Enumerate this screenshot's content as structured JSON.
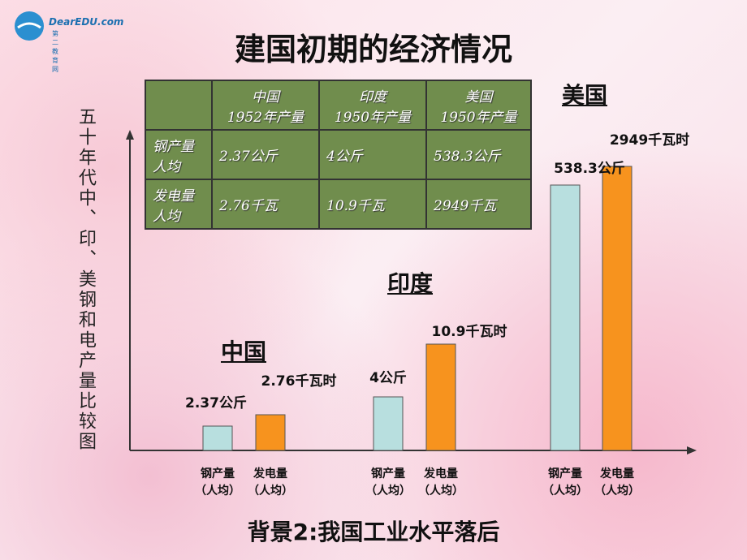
{
  "logo": {
    "brand": "DearEDU.com",
    "sub": "第二教育网"
  },
  "title": "建国初期的经济情况",
  "side_caption": "五十年代中、印、美钢和电产量比较图",
  "table": {
    "header": [
      [
        "中国",
        "1952年产量"
      ],
      [
        "印度",
        "1950年产量"
      ],
      [
        "美国",
        "1950年产量"
      ]
    ],
    "rows": [
      [
        [
          "钢产量",
          "人均"
        ],
        "2.37公斤",
        "4公斤",
        "538.3公斤"
      ],
      [
        [
          "发电量",
          "人均"
        ],
        "2.76千瓦",
        "10.9千瓦",
        "2949千瓦"
      ]
    ]
  },
  "groups": [
    {
      "country": "中国",
      "steel_label": "2.37公斤",
      "power_label": "2.76千瓦时"
    },
    {
      "country": "印度",
      "steel_label": "4公斤",
      "power_label": "10.9千瓦时"
    },
    {
      "country": "美国",
      "steel_label": "538.3公斤",
      "power_label": "2949千瓦时"
    }
  ],
  "bar_captions": [
    [
      "钢产量",
      "（人均）"
    ],
    [
      "发电量",
      "（人均）"
    ]
  ],
  "footer": "背景2:我国工业水平落后"
}
